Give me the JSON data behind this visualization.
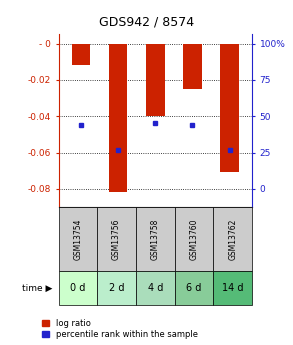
{
  "title": "GDS942 / 8574",
  "categories": [
    "GSM13754",
    "GSM13756",
    "GSM13758",
    "GSM13760",
    "GSM13762"
  ],
  "time_labels": [
    "0 d",
    "2 d",
    "4 d",
    "6 d",
    "14 d"
  ],
  "log_ratio": [
    -0.012,
    -0.082,
    -0.04,
    -0.025,
    -0.071
  ],
  "percentile_rank": [
    0.44,
    0.27,
    0.45,
    0.44,
    0.27
  ],
  "bar_color": "#cc2200",
  "dot_color": "#2222cc",
  "ylim": [
    -0.09,
    0.005
  ],
  "yticks_left": [
    0.0,
    -0.02,
    -0.04,
    -0.06,
    -0.08
  ],
  "ytick_labels_left": [
    "- 0",
    "-0.02",
    "-0.04",
    "-0.06",
    "-0.08"
  ],
  "yticks_right_pct": [
    100,
    75,
    50,
    25,
    0
  ],
  "ytick_labels_right": [
    "100%",
    "75",
    "50",
    "25",
    "0"
  ],
  "time_row_colors": [
    "#ccffcc",
    "#bbeecc",
    "#aaddbb",
    "#88cc99",
    "#55bb77"
  ],
  "gsm_row_color": "#cccccc",
  "bar_width": 0.5,
  "legend_log_ratio": "log ratio",
  "legend_pct": "percentile rank within the sample"
}
